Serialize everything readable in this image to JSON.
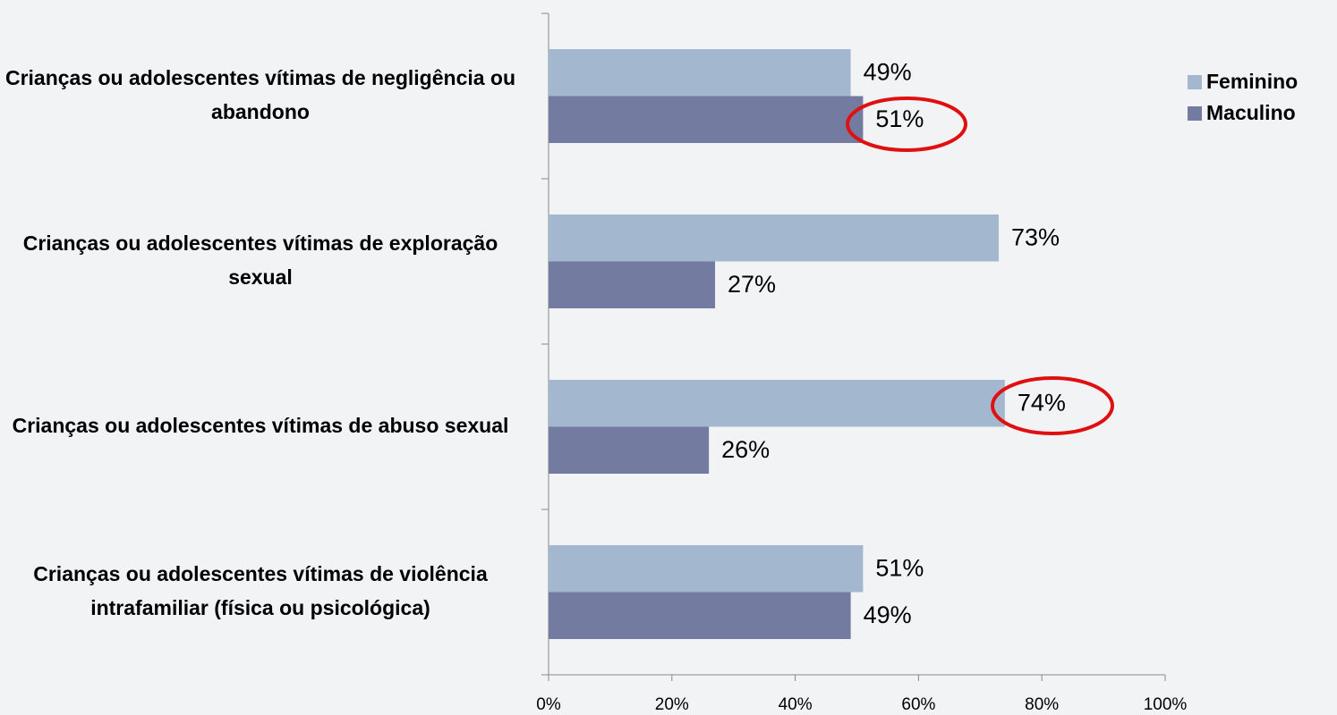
{
  "chart_data": {
    "type": "hbar",
    "categories": [
      "Crianças ou adolescentes vítimas de negligência ou abandono",
      "Crianças ou adolescentes vítimas de exploração sexual",
      "Crianças ou adolescentes vítimas de abuso sexual",
      "Crianças ou adolescentes vítimas de violência intrafamiliar (física ou psicológica)"
    ],
    "series": [
      {
        "name": "Feminino",
        "color": "#a3b8ce",
        "values": [
          49,
          73,
          74,
          51
        ],
        "value_labels": [
          "49%",
          "73%",
          "74%",
          "51%"
        ]
      },
      {
        "name": "Maculino",
        "color": "#737ca0",
        "values": [
          51,
          27,
          26,
          49
        ],
        "value_labels": [
          "51%",
          "27%",
          "26%",
          "49%"
        ]
      }
    ],
    "xlim": [
      0,
      100
    ],
    "xticks": [
      {
        "value": 0,
        "label": "0%"
      },
      {
        "value": 20,
        "label": "20%"
      },
      {
        "value": 40,
        "label": "40%"
      },
      {
        "value": 60,
        "label": "60%"
      },
      {
        "value": 80,
        "label": "80%"
      },
      {
        "value": 100,
        "label": "100%"
      }
    ],
    "legend": "right"
  }
}
